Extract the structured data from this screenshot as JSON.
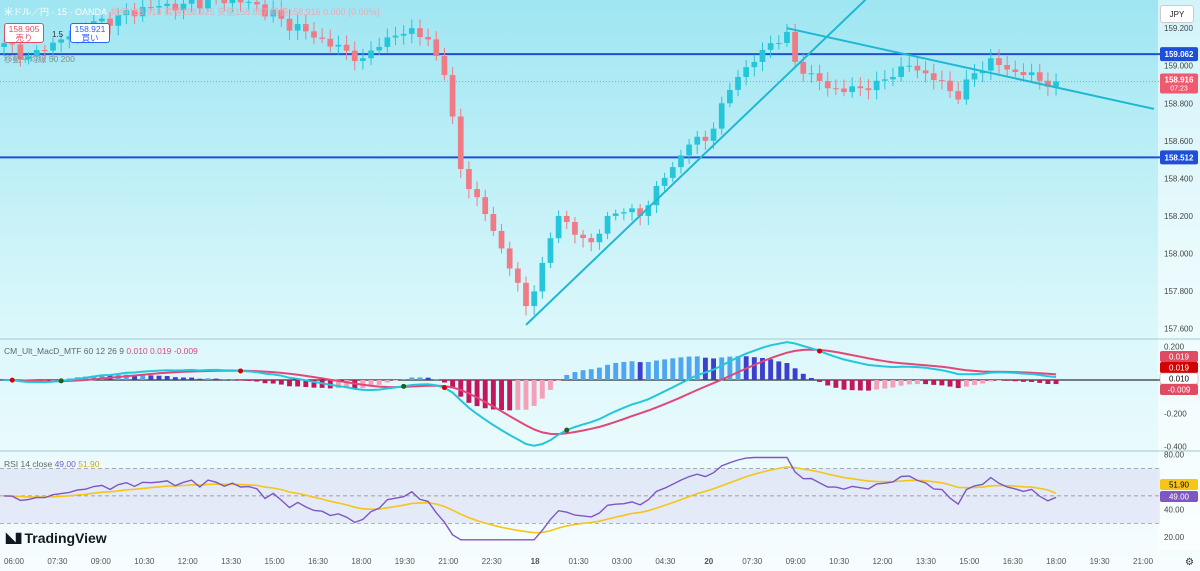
{
  "header": {
    "symbol": "米ドル／円 · 15 · OANDA",
    "ohlc": "始値158.918 高値158.925 安値158.887 終値158.916 0.000 (0.00%)",
    "sell_price": "158.905",
    "sell_label": "売り",
    "buy_price": "158.921",
    "buy_label": "買い",
    "spread": "1.5",
    "sub_indicator": "移動平均線 50 200"
  },
  "currency_button": "JPY",
  "logo_text": "TradingView",
  "colors": {
    "up": "#26c6da",
    "down": "#ef7b86",
    "hline": "#1e4fd8",
    "trend": "#1fb8d2",
    "macd": "#26c6da",
    "signal": "#e0487a",
    "rsi": "#7e57c2",
    "rsi_ma": "#f5c518"
  },
  "chart_data": [
    {
      "type": "candlestick",
      "pane": "price",
      "y_ticks": [
        "159.200",
        "159.000",
        "158.800",
        "158.600",
        "158.400",
        "158.200",
        "158.000",
        "157.800",
        "157.600"
      ],
      "ylim": [
        157.55,
        159.35
      ],
      "x_ticks": [
        "06:00",
        "07:30",
        "09:00",
        "10:30",
        "12:00",
        "13:30",
        "15:00",
        "16:30",
        "18:00",
        "19:30",
        "21:00",
        "22:30",
        "18",
        "01:30",
        "03:00",
        "04:30",
        "20",
        "07:30",
        "09:00",
        "10:30",
        "12:00",
        "13:30",
        "15:00",
        "16:30",
        "18:00",
        "19:30",
        "21:00"
      ],
      "close_anchors": [
        [
          0,
          159.12
        ],
        [
          3,
          159.05
        ],
        [
          5,
          159.08
        ],
        [
          7,
          159.14
        ],
        [
          10,
          159.2
        ],
        [
          14,
          159.27
        ],
        [
          18,
          159.31
        ],
        [
          22,
          159.33
        ],
        [
          26,
          159.36
        ],
        [
          30,
          159.34
        ],
        [
          34,
          159.25
        ],
        [
          38,
          159.15
        ],
        [
          42,
          159.08
        ],
        [
          44,
          159.04
        ],
        [
          46,
          159.1
        ],
        [
          48,
          159.16
        ],
        [
          50,
          159.2
        ],
        [
          52,
          159.14
        ],
        [
          54,
          158.95
        ],
        [
          56,
          158.45
        ],
        [
          58,
          158.3
        ],
        [
          60,
          158.12
        ],
        [
          62,
          157.92
        ],
        [
          64,
          157.72
        ],
        [
          66,
          157.95
        ],
        [
          68,
          158.2
        ],
        [
          70,
          158.1
        ],
        [
          72,
          158.06
        ],
        [
          74,
          158.2
        ],
        [
          76,
          158.22
        ],
        [
          78,
          158.2
        ],
        [
          80,
          158.36
        ],
        [
          82,
          158.46
        ],
        [
          84,
          158.58
        ],
        [
          86,
          158.6
        ],
        [
          88,
          158.8
        ],
        [
          90,
          158.94
        ],
        [
          92,
          159.02
        ],
        [
          94,
          159.12
        ],
        [
          96,
          159.18
        ],
        [
          97,
          159.02
        ],
        [
          99,
          158.96
        ],
        [
          101,
          158.88
        ],
        [
          103,
          158.86
        ],
        [
          105,
          158.88
        ],
        [
          107,
          158.92
        ],
        [
          109,
          158.94
        ],
        [
          111,
          159.0
        ],
        [
          113,
          158.96
        ],
        [
          115,
          158.92
        ],
        [
          117,
          158.82
        ],
        [
          119,
          158.96
        ],
        [
          121,
          159.04
        ],
        [
          123,
          158.98
        ],
        [
          125,
          158.95
        ],
        [
          127,
          158.92
        ],
        [
          129,
          158.916
        ]
      ],
      "horizontal_levels": [
        {
          "price": 159.062,
          "label": "159.062"
        },
        {
          "price": 158.512,
          "label": "158.512"
        }
      ],
      "last_price": {
        "value": "158.916",
        "countdown": "07:23"
      },
      "trendlines": [
        {
          "from": [
            64,
            157.62
          ],
          "to": [
            108,
            159.45
          ]
        },
        {
          "from": [
            96,
            159.2
          ],
          "to": [
            141,
            158.77
          ]
        }
      ]
    },
    {
      "type": "macd",
      "pane": "macd",
      "label": "CM_Ult_MacD_MTF 60 12 26 9",
      "values_text": [
        "0.010",
        "0.019",
        "-0.009"
      ],
      "y_ticks": [
        "0.200",
        "0.000",
        "-0.200",
        "-0.400"
      ],
      "ylim": [
        -0.42,
        0.24
      ],
      "badges": [
        "0.019",
        "0.019",
        "0.010",
        "-0.009"
      ]
    },
    {
      "type": "rsi",
      "pane": "rsi",
      "label": "RSI 14 close",
      "values_text": [
        "49.00",
        "51.90"
      ],
      "y_ticks": [
        "80.00",
        "60.00",
        "40.00",
        "20.00"
      ],
      "ylim": [
        12,
        82
      ],
      "bands": [
        70,
        50,
        30
      ],
      "badges": [
        "51.90",
        "49.00"
      ]
    }
  ]
}
